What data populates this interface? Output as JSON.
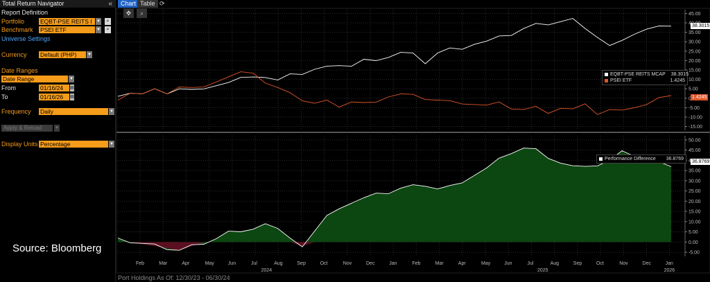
{
  "panel": {
    "title": "Total Return Navigator",
    "collapse_glyph": "«",
    "report_definition": "Report Definition",
    "portfolio_label": "Portfolio",
    "portfolio_value": "EQBT-PSE REITS I",
    "benchmark_label": "Benchmark",
    "benchmark_value": "PSEI ETF",
    "universe_settings": "Universe Settings",
    "currency_label": "Currency",
    "currency_value": "Default (PHP)",
    "date_ranges": "Date Ranges",
    "date_range_value": "Date Range",
    "from_label": "From",
    "from_value": "01/16/24",
    "to_label": "To",
    "to_value": "01/16/26",
    "frequency_label": "Frequency",
    "frequency_value": "Daily",
    "apply_label": "Apply & Reload",
    "display_units_label": "Display Units",
    "display_units_value": "Percentage",
    "source": "Source: Bloomberg"
  },
  "tabs": [
    {
      "label": "Chart",
      "active": true
    },
    {
      "label": "Table",
      "active": false
    }
  ],
  "footer": "Port Holdings As Of: 12/30/23 - 06/30/24",
  "colors": {
    "portfolio": "#ffffff",
    "benchmark": "#e0562a",
    "diff_pos": "#0d4a12",
    "diff_neg": "#5a1020",
    "accent": "#f59c1a"
  },
  "chart_data": [
    {
      "type": "line",
      "ylim": [
        -17,
        47
      ],
      "yticks": [
        "45.00",
        "40.00",
        "35.00",
        "30.00",
        "25.00",
        "20.00",
        "15.00",
        "10.00",
        "5.00",
        "0.00",
        "-5.00",
        "-10.00",
        "-15.00"
      ],
      "ytick_values": [
        45,
        40,
        35,
        30,
        25,
        20,
        15,
        10,
        5,
        0,
        -5,
        -10,
        -15
      ],
      "legend": "top-right",
      "series": [
        {
          "name": "EQBT-PSE REITS MCAP",
          "last": "38.3015",
          "values": [
            1,
            3,
            2,
            4,
            3,
            5,
            4,
            6,
            7,
            8,
            10,
            12,
            11,
            9,
            14,
            13,
            15,
            16,
            18,
            17,
            20,
            21,
            22,
            24,
            23,
            19,
            24,
            26,
            27,
            29,
            30,
            32,
            34,
            37,
            39,
            40,
            41,
            42,
            36,
            33,
            28,
            30,
            35,
            37,
            38,
            38.3
          ]
        },
        {
          "name": "PSEI ETF",
          "last": "1.4245",
          "values": [
            -1,
            3,
            2,
            4,
            3,
            6,
            5,
            7,
            9,
            11,
            13,
            14,
            8,
            5,
            4,
            -1,
            -3,
            -2,
            -4,
            -2,
            -3,
            -1,
            1,
            2,
            1,
            0,
            -1,
            -2,
            -2,
            -3,
            -4,
            -3,
            -5,
            -6,
            -5,
            -7,
            -5,
            -6,
            -4,
            -8,
            -6,
            -7,
            -4,
            -3,
            0,
            1.4
          ]
        }
      ]
    },
    {
      "type": "area",
      "ylim": [
        -7,
        52
      ],
      "yticks": [
        "50.00",
        "45.00",
        "40.00",
        "35.00",
        "30.00",
        "25.00",
        "20.00",
        "15.00",
        "10.00",
        "5.00",
        "0.00",
        "-5.00"
      ],
      "ytick_values": [
        50,
        45,
        40,
        35,
        30,
        25,
        20,
        15,
        10,
        5,
        0,
        -5
      ],
      "legend": "top-right",
      "series": [
        {
          "name": "Performance Difference",
          "last": "36.8769",
          "values": [
            2,
            0,
            -1,
            -2,
            -3,
            -4,
            -2,
            0,
            2,
            5,
            4,
            7,
            9,
            6,
            3,
            -2,
            5,
            12,
            17,
            19,
            21,
            25,
            24,
            26,
            27,
            28,
            26,
            27,
            30,
            33,
            36,
            40,
            44,
            46,
            45,
            42,
            39,
            37,
            36,
            38,
            40,
            44,
            43,
            41,
            39,
            36.9
          ]
        }
      ]
    }
  ],
  "x_axis": {
    "months": [
      "Feb",
      "Mar",
      "Apr",
      "May",
      "Jun",
      "Jul",
      "Aug",
      "Sep",
      "Oct",
      "Nov",
      "Dec",
      "Jan",
      "Feb",
      "Mar",
      "Apr",
      "May",
      "Jun",
      "Jul",
      "Aug",
      "Sep",
      "Oct",
      "Nov",
      "Dec",
      "Jan"
    ],
    "years": [
      "2024",
      "2025",
      "2026"
    ]
  }
}
